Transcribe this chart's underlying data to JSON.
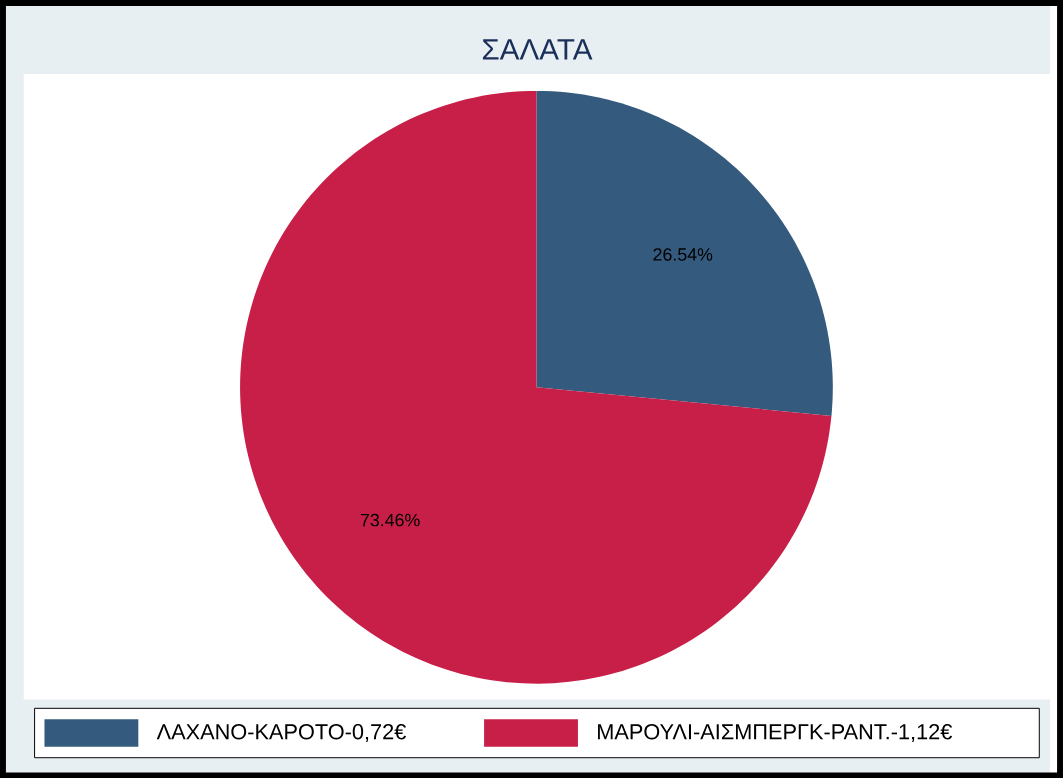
{
  "chart_data": {
    "type": "pie",
    "title": "ΣΑΛΑΤΑ",
    "categories": [
      "ΛΑΧΑΝΟ-ΚΑΡΟΤΟ-0,72€",
      "ΜΑΡΟΥΛΙ-ΑΙΣΜΠΕΡΓΚ-ΡΑΝΤ.-1,12€"
    ],
    "values": [
      26.54,
      73.46
    ],
    "colors": [
      "#345a7e",
      "#c81f48"
    ],
    "value_labels": [
      "26.54%",
      "73.46%"
    ],
    "legend": "bottom"
  }
}
